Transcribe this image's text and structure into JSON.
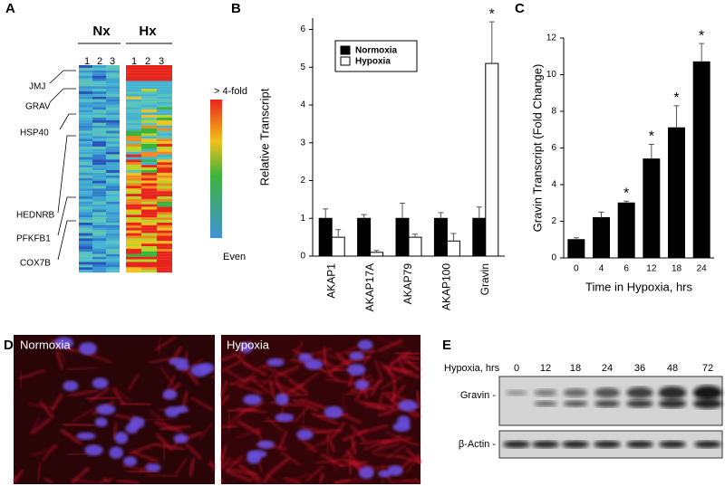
{
  "panels": {
    "labels": [
      "A",
      "B",
      "C",
      "D",
      "E"
    ]
  },
  "heatmap": {
    "groups": [
      "Nx",
      "Hx"
    ],
    "columns": [
      "1",
      "2",
      "3",
      "1",
      "2",
      "3"
    ],
    "genes": [
      "JMJ",
      "GRAV",
      "HSP40",
      "HEDNRB",
      "PFKFB1",
      "COX7B"
    ],
    "scale_high": "> 4-fold",
    "scale_low": "Even"
  },
  "images": {
    "titles": [
      "Normoxia",
      "Hypoxia"
    ]
  },
  "blot": {
    "axis_label": "Hypoxia, hrs",
    "times": [
      "0",
      "12",
      "18",
      "24",
      "36",
      "48",
      "72"
    ],
    "rows": [
      "Gravin -",
      "β-Actin -"
    ]
  },
  "chart_data": [
    {
      "type": "bar",
      "ylabel": "Relative Transcript",
      "categories": [
        "AKAP1",
        "AKAP17A",
        "AKAP79",
        "AKAP100",
        "Gravin"
      ],
      "series": [
        {
          "name": "Normoxia",
          "color": "#000000",
          "values": [
            1,
            1,
            1,
            1,
            1
          ],
          "errors": [
            0.25,
            0.1,
            0.4,
            0.15,
            0.3
          ]
        },
        {
          "name": "Hypoxia",
          "color": "#ffffff",
          "values": [
            0.5,
            0.1,
            0.5,
            0.4,
            5.1
          ],
          "errors": [
            0.2,
            0.05,
            0.08,
            0.2,
            1.1
          ],
          "annotations": [
            null,
            null,
            null,
            null,
            "*"
          ]
        }
      ],
      "ylim": [
        0,
        6.3
      ],
      "yticks": [
        0,
        1,
        2,
        3,
        4,
        5,
        6
      ],
      "legend": "upper left"
    },
    {
      "type": "bar",
      "ylabel": "Gravin Transcript (Fold Change)",
      "xlabel": "Time in Hypoxia, hrs",
      "categories": [
        "0",
        "4",
        "6",
        "12",
        "18",
        "24"
      ],
      "values": [
        1,
        2.2,
        3,
        5.4,
        7.1,
        10.7
      ],
      "errors": [
        0.1,
        0.3,
        0.1,
        0.8,
        1.2,
        1.0
      ],
      "annotations": [
        null,
        null,
        "*",
        "*",
        "*",
        "*"
      ],
      "color": "#000000",
      "ylim": [
        0,
        12
      ],
      "yticks": [
        0,
        2,
        4,
        6,
        8,
        10,
        12
      ]
    }
  ]
}
